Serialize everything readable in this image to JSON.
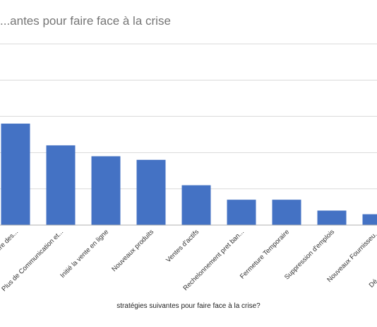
{
  "chart_data": {
    "type": "bar",
    "title": "...antes pour faire face à la crise",
    "xlabel": "stratégies suivantes pour faire face à la crise?",
    "ylabel": "",
    "ylim": [
      0,
      5
    ],
    "grid": true,
    "categories": [
      "...re des...",
      "Plus de Communication et...",
      "Initié la vente en ligne",
      "Nouveaux produits",
      "Ventes d'actifs",
      "Rechelonnement pret ban...",
      "Fermeture Temporaire",
      "Suppression d'emplois",
      "Nouveaux Fournisseu..."
    ],
    "values": [
      2.8,
      2.2,
      1.9,
      1.8,
      1.1,
      0.7,
      0.7,
      0.4,
      0.3
    ],
    "colors": {
      "bar": "#4472c4",
      "grid": "#d9d9d9",
      "axis": "#b0b0b0",
      "text": "#333333"
    }
  }
}
